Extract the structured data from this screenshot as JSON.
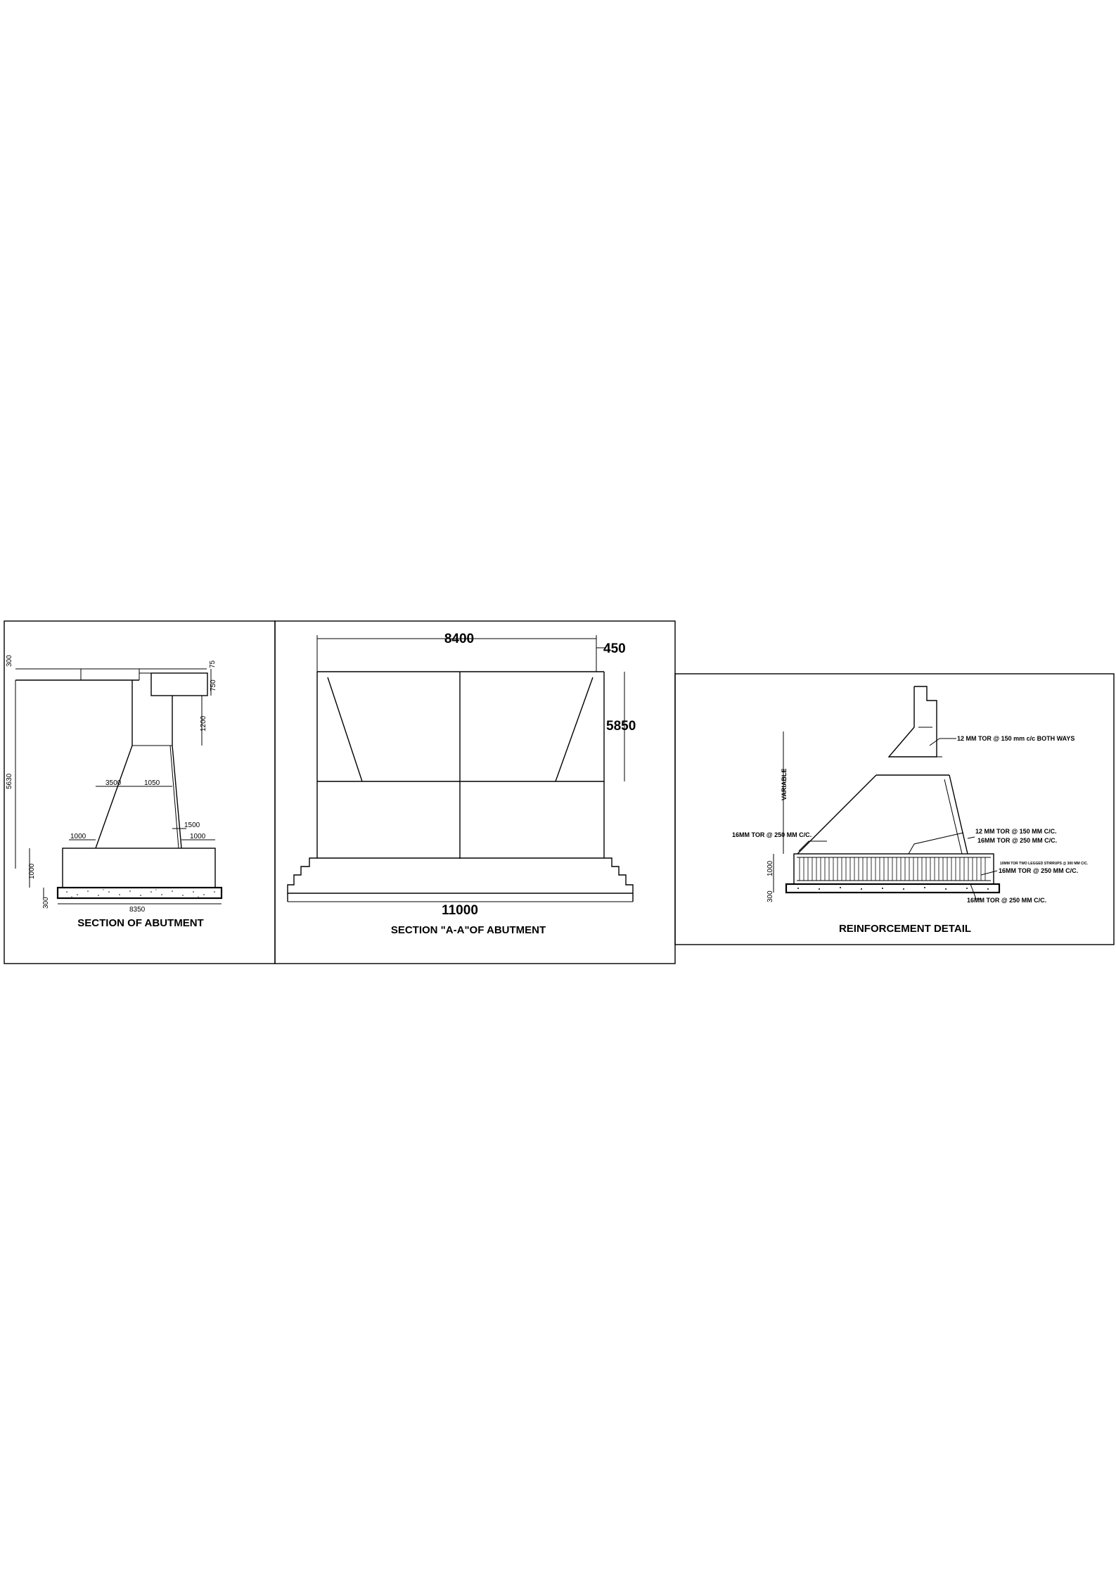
{
  "abutment_section": {
    "title": "SECTION OF ABUTMENT",
    "dims": {
      "d300": "300",
      "d75": "75",
      "d750": "750",
      "d1200": "1200",
      "d5630": "5630",
      "d3500": "3500",
      "d1050": "1050",
      "d1500": "1500",
      "d1000_left": "1000",
      "d1000_right": "1000",
      "d1000_vert": "1000",
      "d300_base": "300",
      "d8350": "8350"
    }
  },
  "section_aa": {
    "title": "SECTION \"A-A\"OF ABUTMENT",
    "dims": {
      "top": "8400",
      "cap": "450",
      "height": "5850",
      "base": "11000"
    }
  },
  "reinforcement": {
    "title": "REINFORCEMENT DETAIL",
    "variable_label": "VARIABLE",
    "notes": {
      "cap_bars": "12 MM TOR @ 150 mm c/c BOTH WAYS",
      "left_bars": "16MM TOR @ 250 MM C/C.",
      "right_bars_1": "12 MM TOR @ 150 MM C/C.",
      "right_bars_2": "16MM TOR @ 250 MM C/C.",
      "stirrups": "10MM TOR TWO LEGGED STIRRUPS @ 300 MM C/C.",
      "base_bars_1": "16MM TOR @ 250 MM C/C.",
      "base_bars_2": "16MM TOR @ 250 MM C/C."
    },
    "dims": {
      "d1000": "1000",
      "d300": "300"
    }
  }
}
